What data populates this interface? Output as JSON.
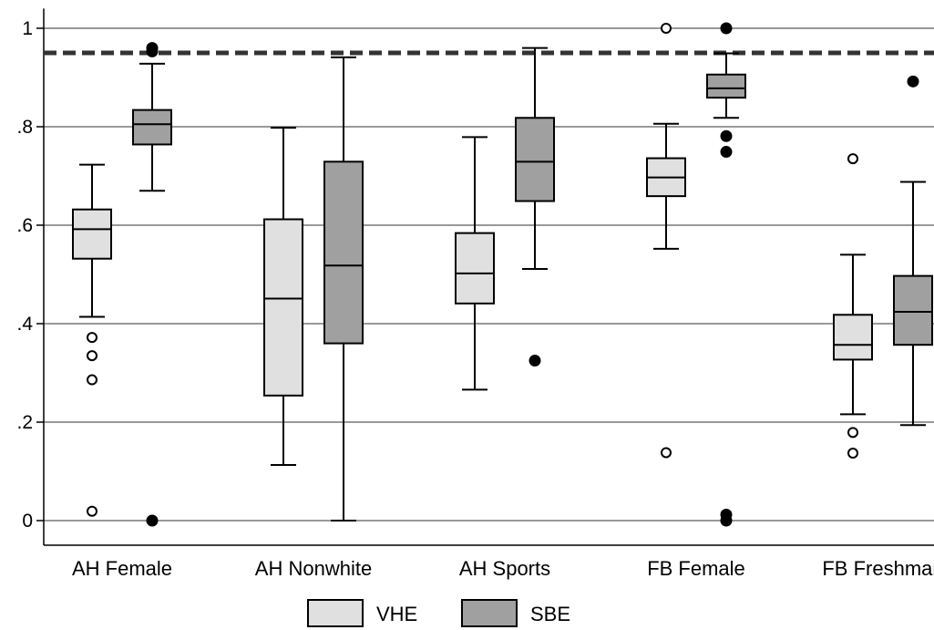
{
  "chart_data": {
    "type": "box",
    "title": "",
    "xlabel": "",
    "ylabel": "",
    "ylim": [
      -0.05,
      1.04
    ],
    "yticks": [
      {
        "value": 0,
        "label": "0"
      },
      {
        "value": 0.2,
        "label": ".2"
      },
      {
        "value": 0.4,
        "label": ".4"
      },
      {
        "value": 0.6,
        "label": ".6"
      },
      {
        "value": 0.8,
        "label": ".8"
      },
      {
        "value": 1,
        "label": "1"
      }
    ],
    "grid": "horizontal",
    "reference_line": {
      "value": 0.95,
      "style": "dashed"
    },
    "categories": [
      "AH Female",
      "AH Nonwhite",
      "AH Sports",
      "FB Female",
      "FB Freshman"
    ],
    "legend": {
      "position": "bottom"
    },
    "series": [
      {
        "name": "VHE",
        "color": "#e0e0e0",
        "outlier_style": "hollow",
        "boxes": [
          {
            "whisker_low": 0.414,
            "q1": 0.532,
            "median": 0.592,
            "q3": 0.632,
            "whisker_high": 0.723,
            "outliers": [
              0.372,
              0.335,
              0.286,
              0.019
            ]
          },
          {
            "whisker_low": 0.113,
            "q1": 0.254,
            "median": 0.451,
            "q3": 0.612,
            "whisker_high": 0.798,
            "outliers": []
          },
          {
            "whisker_low": 0.266,
            "q1": 0.441,
            "median": 0.502,
            "q3": 0.584,
            "whisker_high": 0.779,
            "outliers": []
          },
          {
            "whisker_low": 0.552,
            "q1": 0.659,
            "median": 0.697,
            "q3": 0.736,
            "whisker_high": 0.806,
            "outliers": [
              1.0,
              0.138
            ]
          },
          {
            "whisker_low": 0.216,
            "q1": 0.327,
            "median": 0.357,
            "q3": 0.418,
            "whisker_high": 0.54,
            "outliers": [
              0.735,
              0.179,
              0.137
            ]
          }
        ]
      },
      {
        "name": "SBE",
        "color": "#a0a0a0",
        "outlier_style": "filled",
        "boxes": [
          {
            "whisker_low": 0.67,
            "q1": 0.764,
            "median": 0.805,
            "q3": 0.834,
            "whisker_high": 0.928,
            "outliers": [
              0.96,
              0.953,
              0.0
            ]
          },
          {
            "whisker_low": 0.0,
            "q1": 0.36,
            "median": 0.518,
            "q3": 0.729,
            "whisker_high": 0.941,
            "outliers": []
          },
          {
            "whisker_low": 0.511,
            "q1": 0.649,
            "median": 0.729,
            "q3": 0.818,
            "whisker_high": 0.96,
            "outliers": [
              0.325
            ]
          },
          {
            "whisker_low": 0.818,
            "q1": 0.859,
            "median": 0.878,
            "q3": 0.906,
            "whisker_high": 0.949,
            "outliers": [
              1.0,
              0.781,
              0.749,
              0.012,
              0.0
            ]
          },
          {
            "whisker_low": 0.194,
            "q1": 0.357,
            "median": 0.424,
            "q3": 0.497,
            "whisker_high": 0.688,
            "outliers": [
              0.892
            ]
          }
        ]
      }
    ]
  }
}
